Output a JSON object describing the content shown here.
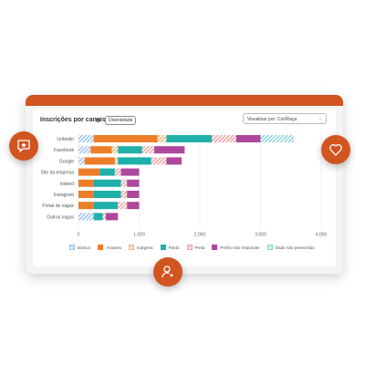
{
  "widget": {
    "title": "Inscrições por canais",
    "badge": "Diversidade",
    "select_value": "Visualizar por: Cor/Raça"
  },
  "icons": {
    "left": "chat-star-icon",
    "right": "heart-icon",
    "bottom": "user-star-icon"
  },
  "colors": {
    "accent": "#d2541f",
    "Branco": "#9ec3ea",
    "Amarelo": "#ee7d2a",
    "Indígena": "#f2b679",
    "Pardo": "#1fb0aa",
    "Preta": "#f0a2a2",
    "Prefiro não responder": "#ad489c",
    "Dado não preenchido": "#8fd3dd"
  },
  "chart_data": {
    "type": "bar",
    "orientation": "horizontal",
    "stacked": true,
    "categories": [
      "Linkedin",
      "Facebook",
      "Google",
      "Site da empresa",
      "Indeed",
      "Instagram",
      "Portal de vagas",
      "Outros vagas"
    ],
    "xlim": [
      0,
      4000
    ],
    "xticks": [
      "0",
      "1.000",
      "2.000",
      "3.000",
      "4.000"
    ],
    "grid": true,
    "legend_position": "bottom",
    "series": [
      {
        "name": "Branco",
        "pattern": "hatched",
        "values": [
          250,
          200,
          100,
          0,
          0,
          0,
          0,
          250
        ]
      },
      {
        "name": "Amarelo",
        "pattern": "solid",
        "values": [
          1050,
          350,
          500,
          350,
          250,
          250,
          250,
          0
        ]
      },
      {
        "name": "Indígena",
        "pattern": "hatched",
        "values": [
          150,
          100,
          50,
          0,
          0,
          0,
          0,
          0
        ]
      },
      {
        "name": "Pardo",
        "pattern": "solid",
        "values": [
          750,
          400,
          550,
          250,
          450,
          450,
          400,
          150
        ]
      },
      {
        "name": "Preta",
        "pattern": "hatched",
        "values": [
          400,
          200,
          250,
          100,
          100,
          100,
          150,
          50
        ]
      },
      {
        "name": "Prefiro não responder",
        "pattern": "solid",
        "values": [
          400,
          500,
          250,
          300,
          200,
          200,
          200,
          200
        ]
      },
      {
        "name": "Dado não preenchido",
        "pattern": "hatched",
        "values": [
          550,
          0,
          0,
          0,
          0,
          0,
          0,
          0
        ]
      }
    ]
  }
}
